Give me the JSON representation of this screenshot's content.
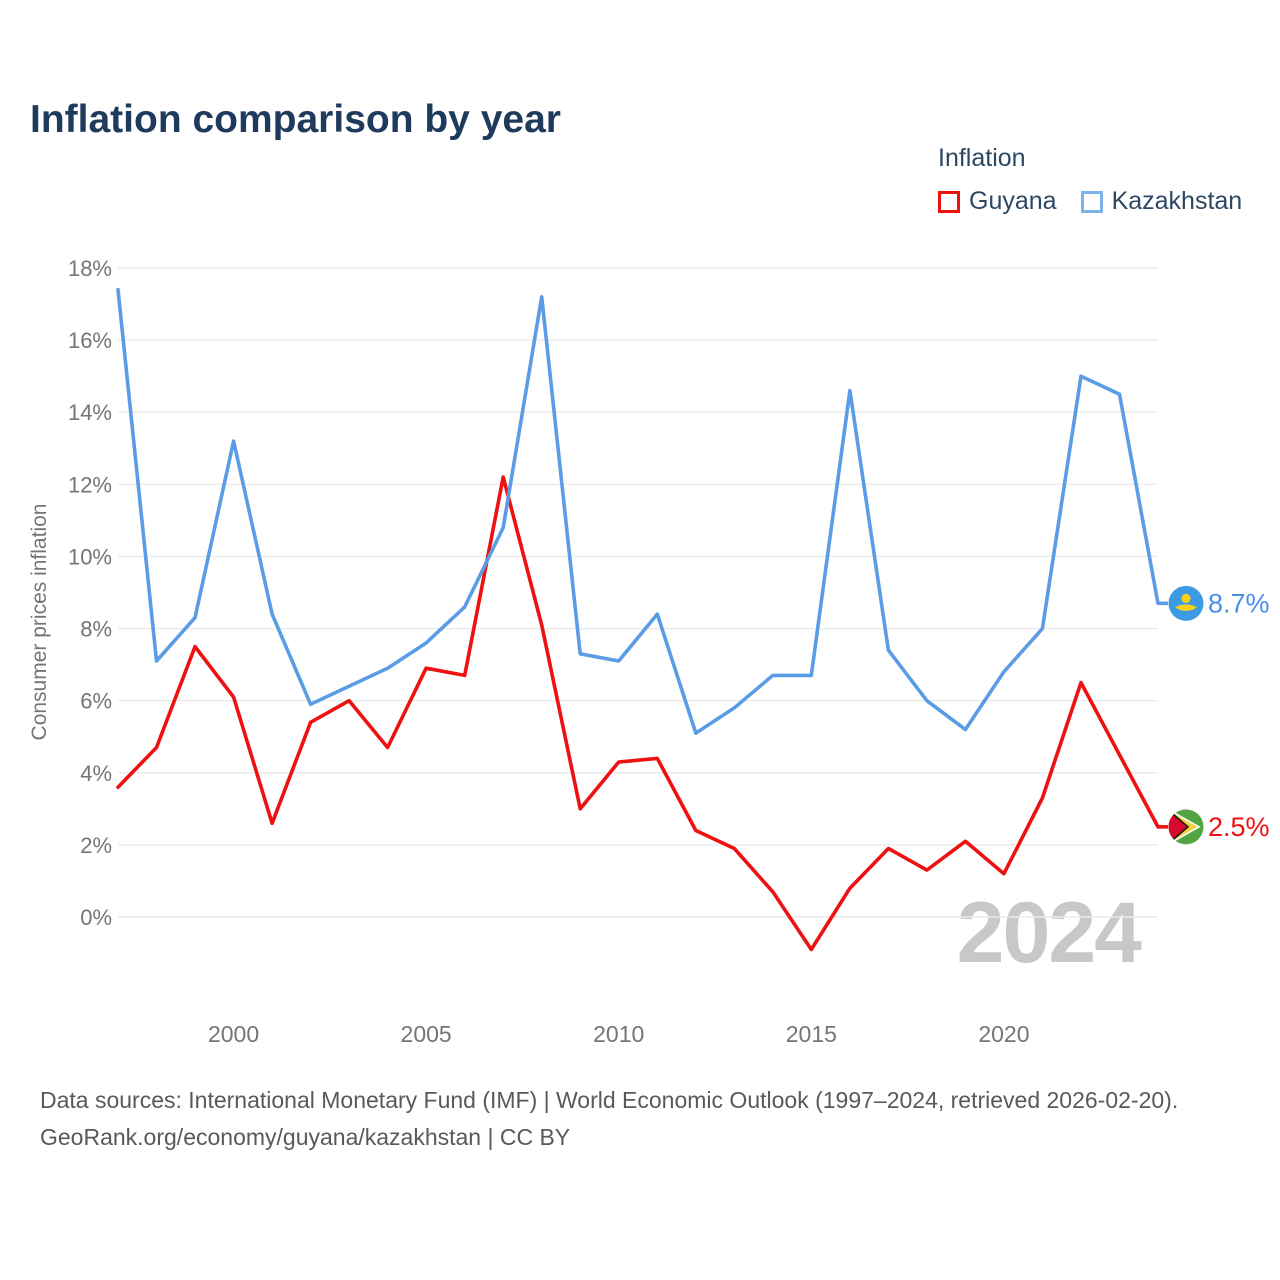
{
  "header": {
    "title": "Inflation comparison by year"
  },
  "legend": {
    "title": "Inflation",
    "items": [
      {
        "label": "Guyana",
        "color": "#ee1111"
      },
      {
        "label": "Kazakhstan",
        "color": "#7db3ea"
      }
    ]
  },
  "chart_data": {
    "type": "line",
    "title": "Inflation comparison by year",
    "xlabel": "",
    "ylabel": "Consumer prices inflation",
    "x": [
      1997,
      1998,
      1999,
      2000,
      2001,
      2002,
      2003,
      2004,
      2005,
      2006,
      2007,
      2008,
      2009,
      2010,
      2011,
      2012,
      2013,
      2014,
      2015,
      2016,
      2017,
      2018,
      2019,
      2020,
      2021,
      2022,
      2023,
      2024
    ],
    "series": [
      {
        "name": "Guyana",
        "color": "#ee1111",
        "label_color": "#ee1111",
        "end_label": "2.5%",
        "values": [
          3.6,
          4.7,
          7.5,
          6.1,
          2.6,
          5.4,
          6.0,
          4.7,
          6.9,
          6.7,
          12.2,
          8.1,
          3.0,
          4.3,
          4.4,
          2.4,
          1.9,
          0.7,
          -0.9,
          0.8,
          1.9,
          1.3,
          2.1,
          1.2,
          3.3,
          6.5,
          4.5,
          2.5
        ]
      },
      {
        "name": "Kazakhstan",
        "color": "#5b9ce6",
        "label_color": "#4a90e8",
        "end_label": "8.7%",
        "values": [
          17.4,
          7.1,
          8.3,
          13.2,
          8.4,
          5.9,
          6.4,
          6.9,
          7.6,
          8.6,
          10.8,
          17.2,
          7.3,
          7.1,
          8.4,
          5.1,
          5.8,
          6.7,
          6.7,
          14.6,
          7.4,
          6.0,
          5.2,
          6.8,
          8.0,
          15.0,
          14.5,
          8.7
        ]
      }
    ],
    "yticks": [
      0,
      2,
      4,
      6,
      8,
      10,
      12,
      14,
      16,
      18
    ],
    "ytick_suffix": "%",
    "xticks": [
      2000,
      2005,
      2010,
      2015,
      2020
    ],
    "ylim": [
      0,
      18
    ],
    "grid": "horizontal",
    "legend_position": "top-right",
    "watermark": "2024"
  },
  "footer": {
    "sources": "Data sources: International Monetary Fund (IMF) | World Economic Outlook (1997–2024, retrieved 2026-02-20).",
    "link": "GeoRank.org/economy/guyana/kazakhstan | CC BY"
  },
  "colors": {
    "title_text": "#1e3a5c",
    "axis_text": "#757575",
    "gridline": "#ebebeb",
    "watermark": "#c8c8c8",
    "footer_text": "#595959",
    "kazakhstan_flag_blue": "#3d9be3",
    "kazakhstan_flag_yellow": "#fad116",
    "guyana_flag_green": "#54a443",
    "guyana_flag_yellow": "#f5cf3e",
    "guyana_flag_red": "#d60a2e",
    "guyana_flag_black": "#1a1a1a"
  }
}
